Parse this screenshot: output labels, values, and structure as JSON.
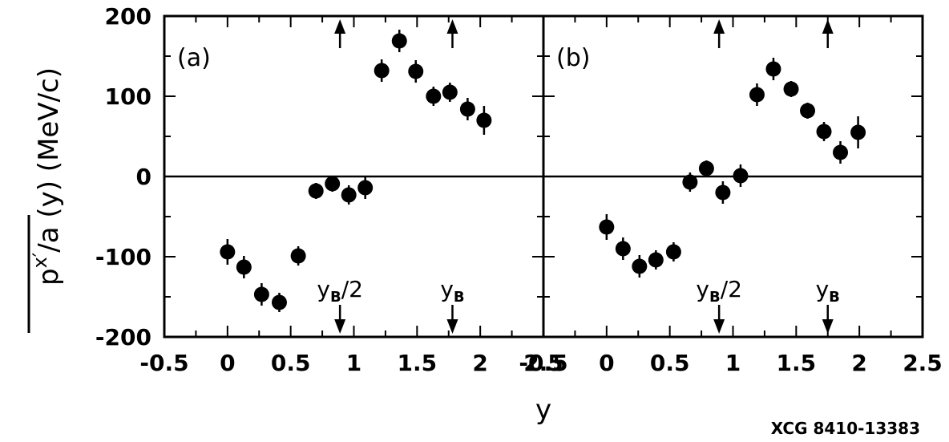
{
  "figure": {
    "credit": "XCG 8410-13383",
    "colors": {
      "ink": "#000000",
      "background": "#ffffff"
    }
  },
  "chart_data": [
    {
      "type": "scatter",
      "panel_label": "(a)",
      "xlabel": "y",
      "ylabel": "p",
      "ylabel_parts": {
        "base": "p",
        "superscript": "x′",
        "after": "/a (y) (MeV/c)"
      },
      "xlim": [
        -0.5,
        2.5
      ],
      "ylim": [
        -200,
        200
      ],
      "xticks": [
        -0.5,
        0,
        0.5,
        1,
        1.5,
        2,
        2.5
      ],
      "xtick_labels": [
        "-0.5",
        "0",
        "0.5",
        "1",
        "1.5",
        "2",
        "2.5"
      ],
      "yticks": [
        -200,
        -100,
        0,
        100,
        200
      ],
      "ytick_labels": [
        "-200",
        "-100",
        "0",
        "100",
        "200"
      ],
      "zero_line": true,
      "grid": false,
      "markers": [
        {
          "label": "y",
          "subscript": "B",
          "suffix": "/2",
          "x": 0.89
        },
        {
          "label": "y",
          "subscript": "B",
          "suffix": "",
          "x": 1.78
        }
      ],
      "x": [
        0.0,
        0.13,
        0.27,
        0.41,
        0.56,
        0.7,
        0.83,
        0.96,
        1.09,
        1.22,
        1.36,
        1.49,
        1.63,
        1.76,
        1.9,
        2.03
      ],
      "y": [
        -94,
        -113,
        -147,
        -157,
        -99,
        -18,
        -9,
        -23,
        -14,
        132,
        169,
        131,
        100,
        105,
        84,
        70
      ],
      "yerr": [
        16,
        14,
        14,
        12,
        12,
        10,
        10,
        12,
        14,
        14,
        14,
        14,
        12,
        12,
        14,
        18
      ]
    },
    {
      "type": "scatter",
      "panel_label": "(b)",
      "xlabel": "y",
      "xlim": [
        -0.5,
        2.5
      ],
      "ylim": [
        -200,
        200
      ],
      "xticks": [
        -0.5,
        0,
        0.5,
        1,
        1.5,
        2,
        2.5
      ],
      "xtick_labels": [
        "-0.5",
        "0",
        "0.5",
        "1",
        "1.5",
        "2",
        "2.5"
      ],
      "yticks": [
        -200,
        -100,
        0,
        100,
        200
      ],
      "zero_line": true,
      "grid": false,
      "markers": [
        {
          "label": "y",
          "subscript": "B",
          "suffix": "/2",
          "x": 0.89
        },
        {
          "label": "y",
          "subscript": "B",
          "suffix": "",
          "x": 1.75
        }
      ],
      "x": [
        0.0,
        0.13,
        0.26,
        0.39,
        0.53,
        0.66,
        0.79,
        0.92,
        1.06,
        1.19,
        1.32,
        1.46,
        1.59,
        1.72,
        1.85,
        1.99
      ],
      "y": [
        -63,
        -90,
        -112,
        -104,
        -94,
        -7,
        10,
        -20,
        1,
        102,
        134,
        109,
        82,
        56,
        30,
        55
      ],
      "yerr": [
        16,
        14,
        14,
        12,
        12,
        12,
        10,
        14,
        14,
        14,
        14,
        10,
        10,
        12,
        14,
        20
      ]
    }
  ]
}
